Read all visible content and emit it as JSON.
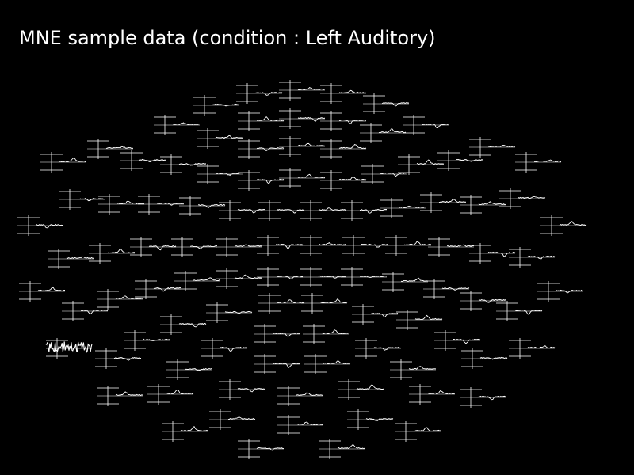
{
  "title": "MNE sample data (condition : Left Auditory)",
  "chart_data": {
    "type": "topo-line",
    "title": "MNE sample data (condition : Left Auditory)",
    "background_color": "#000000",
    "axis_color": "#ffffff",
    "trace_color": "#ffffff",
    "noisy_channel_count": 1
  }
}
